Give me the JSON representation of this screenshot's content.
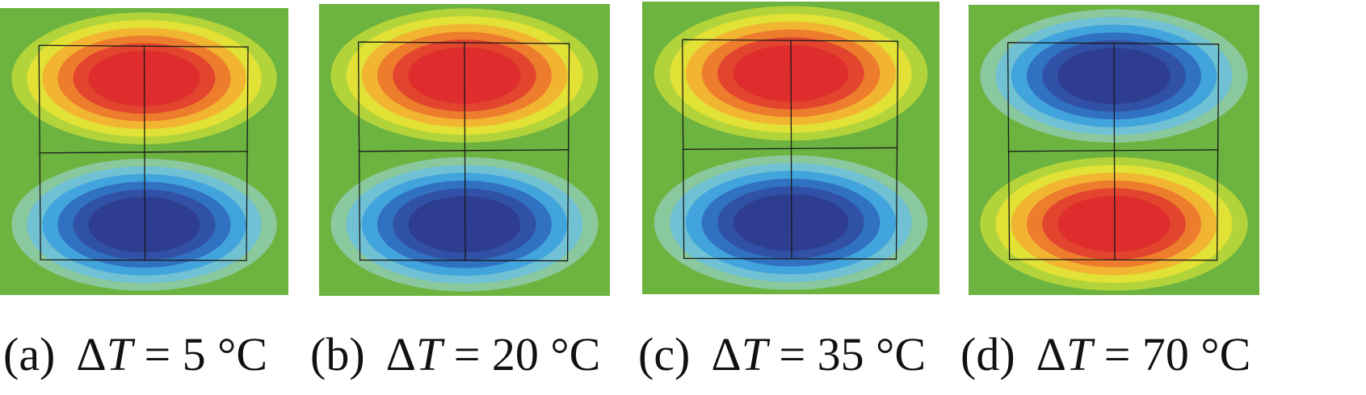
{
  "panels": [
    {
      "id": "a",
      "label": "(a)",
      "delta": "Δ",
      "var": "T",
      "eq": " = 5 °C",
      "top_lobe": "hot"
    },
    {
      "id": "b",
      "label": "(b)",
      "delta": "Δ",
      "var": "T",
      "eq": " = 20 °C",
      "top_lobe": "hot"
    },
    {
      "id": "c",
      "label": "(c)",
      "delta": "Δ",
      "var": "T",
      "eq": " = 35 °C",
      "top_lobe": "hot"
    },
    {
      "id": "d",
      "label": "(d)",
      "delta": "Δ",
      "var": "T",
      "eq": " = 70 °C",
      "top_lobe": "cold"
    }
  ],
  "colors": {
    "background": "#6db33f",
    "hot": [
      "#b6d63a",
      "#e4e236",
      "#f2b233",
      "#ec7a2c",
      "#e2412e",
      "#dd2c2c"
    ],
    "cold": [
      "#8cc9a2",
      "#6ec1d6",
      "#3fa2dc",
      "#2f6fbf",
      "#304fa3",
      "#2e3c8e"
    ],
    "frame": "#1a1a1a"
  }
}
